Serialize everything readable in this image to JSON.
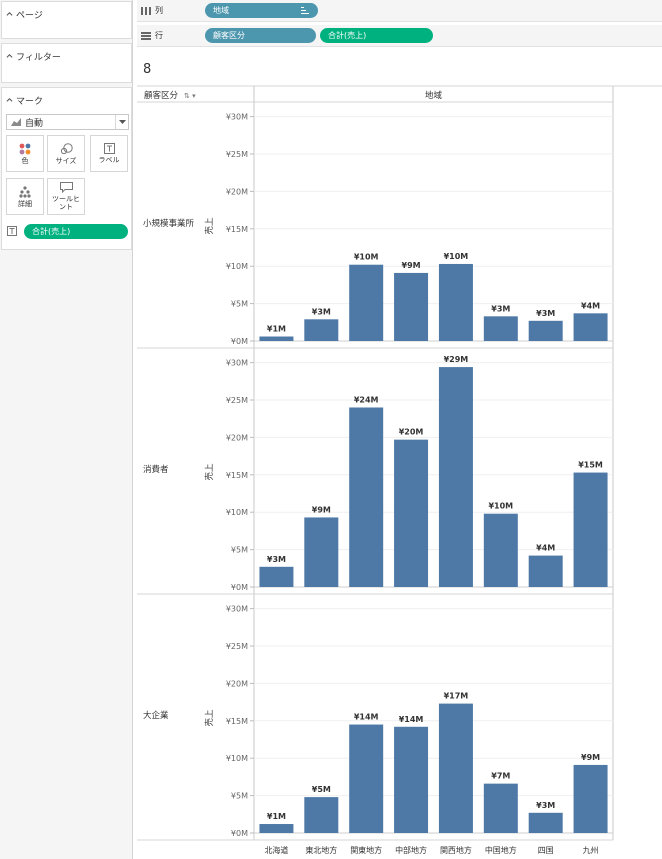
{
  "left_panel": {
    "pages_title": "ページ",
    "filters_title": "フィルター",
    "marks_title": "マーク",
    "mark_type": "自動",
    "buttons": {
      "color": "色",
      "size": "サイズ",
      "label": "ラベル",
      "detail": "詳細",
      "tooltip": "ツールヒント"
    },
    "label_pill": "合計(売上)"
  },
  "shelves": {
    "columns": {
      "label": "列",
      "pill": "地域"
    },
    "rows": {
      "label": "行",
      "pills": [
        "顧客区分",
        "合計(売上)"
      ]
    }
  },
  "sheet_title": "8",
  "header": {
    "row_header": "顧客区分",
    "col_header": "地域"
  },
  "colors": {
    "bar": "#4e79a7",
    "green_pill": "#00b180",
    "blue_pill": "#4c96ae"
  },
  "chart_data": {
    "type": "bar",
    "categories": [
      "北海道",
      "東北地方",
      "関東地方",
      "中部地方",
      "関西地方",
      "中国地方",
      "四国",
      "九州"
    ],
    "ylabel": "売上",
    "ylim": [
      0,
      30
    ],
    "y_ticks": [
      "¥0M",
      "¥5M",
      "¥10M",
      "¥15M",
      "¥20M",
      "¥25M",
      "¥30M"
    ],
    "grid": true,
    "panels": [
      {
        "name": "小規模事業所",
        "values": [
          0.6,
          2.9,
          10.2,
          9.1,
          10.3,
          3.3,
          2.7,
          3.7
        ],
        "labels": [
          "¥1M",
          "¥3M",
          "¥10M",
          "¥9M",
          "¥10M",
          "¥3M",
          "¥3M",
          "¥4M"
        ]
      },
      {
        "name": "消費者",
        "values": [
          2.7,
          9.3,
          24.0,
          19.7,
          29.4,
          9.8,
          4.2,
          15.3
        ],
        "labels": [
          "¥3M",
          "¥9M",
          "¥24M",
          "¥20M",
          "¥29M",
          "¥10M",
          "¥4M",
          "¥15M"
        ]
      },
      {
        "name": "大企業",
        "values": [
          1.2,
          4.8,
          14.5,
          14.2,
          17.3,
          6.6,
          2.7,
          9.1
        ],
        "labels": [
          "¥1M",
          "¥5M",
          "¥14M",
          "¥14M",
          "¥17M",
          "¥7M",
          "¥3M",
          "¥9M"
        ]
      }
    ]
  }
}
